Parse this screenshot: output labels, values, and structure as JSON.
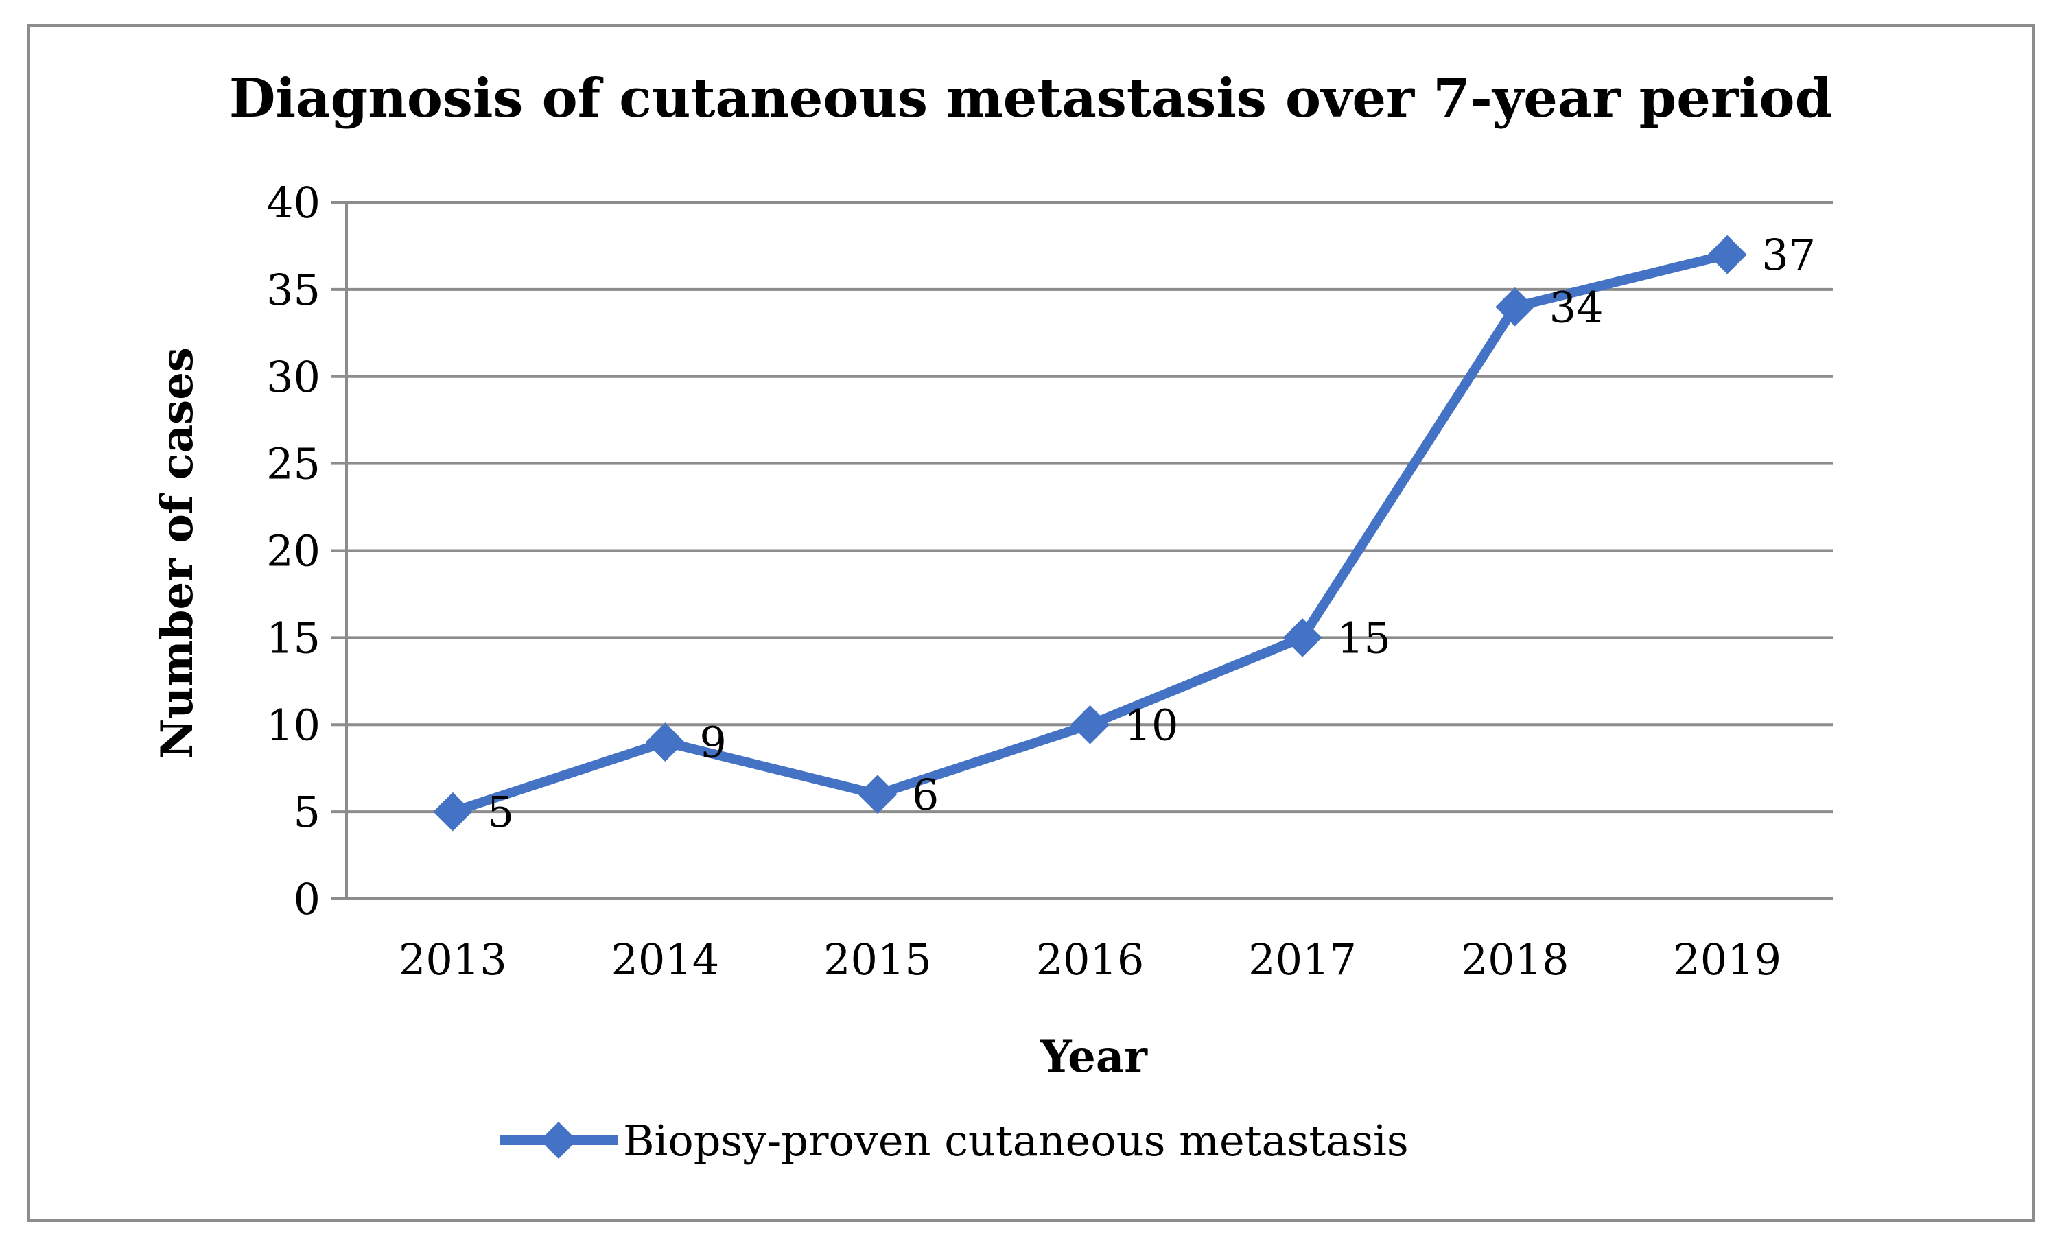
{
  "chart_data": {
    "type": "line",
    "title": "Diagnosis of cutaneous metastasis over 7-year period",
    "xlabel": "Year",
    "ylabel": "Number of cases",
    "categories": [
      "2013",
      "2014",
      "2015",
      "2016",
      "2017",
      "2018",
      "2019"
    ],
    "series": [
      {
        "name": "Biopsy-proven cutaneous metastasis",
        "values": [
          5,
          9,
          6,
          10,
          15,
          34,
          37
        ],
        "color": "#4472C4",
        "marker": "diamond",
        "data_labels": [
          "5",
          "9",
          "6",
          "10",
          "15",
          "34",
          "37"
        ]
      }
    ],
    "ylim": [
      0,
      40
    ],
    "yticks": [
      "0",
      "5",
      "10",
      "15",
      "20",
      "25",
      "30",
      "35",
      "40"
    ],
    "grid": true,
    "gridline_color": "#8c8c8c",
    "legend": "bottom-center"
  }
}
